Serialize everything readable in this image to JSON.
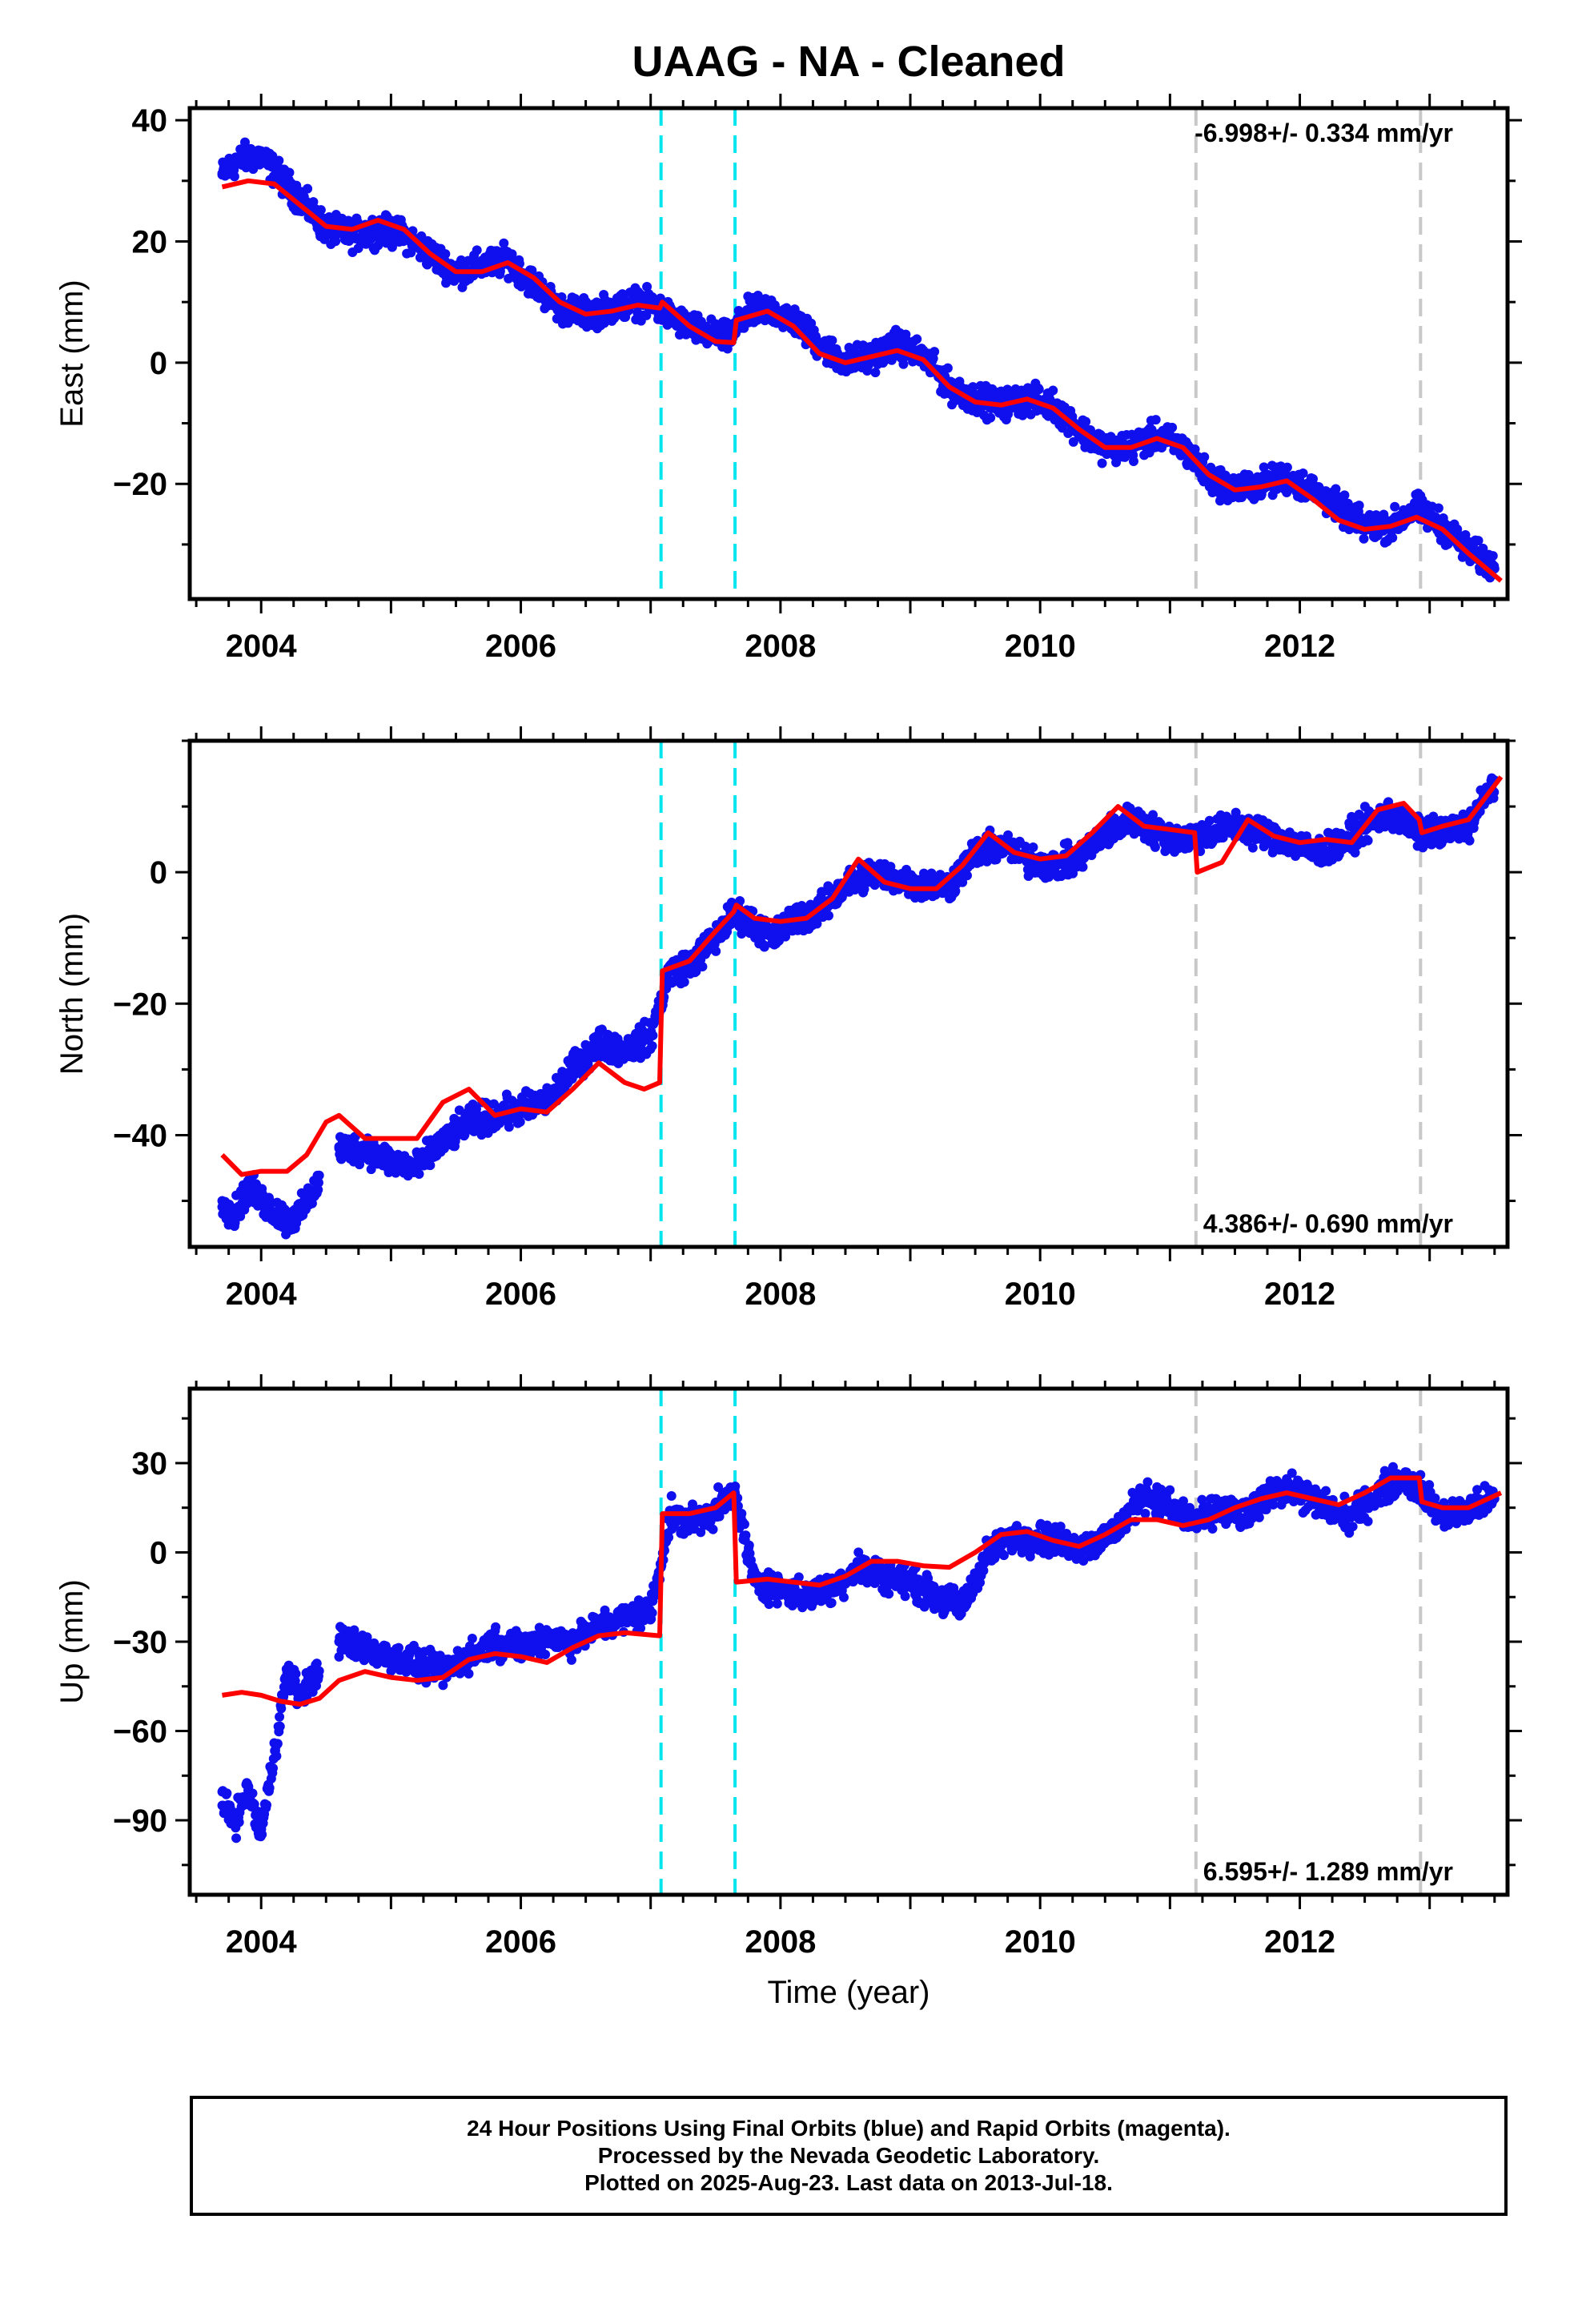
{
  "colors": {
    "data": "#1010ee",
    "model": "#ff0000",
    "event_cyan": "#00e5ee",
    "event_gray": "#c8c8c8",
    "frame": "#000000"
  },
  "footer": {
    "line1": "24 Hour Positions Using Final Orbits (blue) and Rapid Orbits (magenta).",
    "line2": "Processed by the Nevada Geodetic Laboratory.",
    "line3": "Plotted on 2025-Aug-23. Last data on 2013-Jul-18."
  },
  "chart_data": [
    {
      "type": "scatter",
      "title": "UAAG  - NA - Cleaned",
      "xlabel": "",
      "ylabel": "East (mm)",
      "xlim": [
        2003.45,
        2013.6
      ],
      "ylim": [
        -39,
        42
      ],
      "xticks": [
        2004,
        2006,
        2008,
        2010,
        2012
      ],
      "yticks": [
        -20,
        0,
        20,
        40
      ],
      "rate_label": "-6.998+/- 0.334 mm/yr",
      "rate_position": "top-right",
      "grid": false,
      "events_cyan": [
        2007.08,
        2007.65
      ],
      "events_gray": [
        2011.2,
        2012.93
      ],
      "series": [
        {
          "role": "data",
          "x": [
            2003.7,
            2003.8,
            2003.9,
            2004.0,
            2004.3,
            2004.5,
            2004.7,
            2004.9,
            2005.1,
            2005.3,
            2005.5,
            2005.7,
            2005.9,
            2006.1,
            2006.3,
            2006.5,
            2006.7,
            2006.9,
            2007.05,
            2007.2,
            2007.4,
            2007.6,
            2007.75,
            2007.9,
            2008.1,
            2008.3,
            2008.5,
            2008.7,
            2008.9,
            2009.1,
            2009.3,
            2009.5,
            2009.7,
            2009.9,
            2010.1,
            2010.3,
            2010.5,
            2010.7,
            2010.9,
            2011.1,
            2011.3,
            2011.5,
            2011.7,
            2011.9,
            2012.1,
            2012.3,
            2012.5,
            2012.7,
            2012.9,
            2013.1,
            2013.3,
            2013.5
          ],
          "y": [
            31,
            33,
            34,
            34,
            27,
            22,
            21,
            22,
            21,
            18,
            15,
            16,
            17,
            13,
            9,
            8,
            9,
            10,
            9,
            7,
            5,
            4,
            8,
            9,
            7,
            3,
            0,
            1,
            3,
            1,
            -4,
            -6,
            -7,
            -6,
            -7,
            -11,
            -14,
            -14,
            -12,
            -14,
            -19,
            -21,
            -20,
            -19,
            -21,
            -24,
            -27,
            -27,
            -24,
            -27,
            -31,
            -34
          ]
        },
        {
          "role": "model",
          "x": [
            2003.7,
            2003.9,
            2004.1,
            2004.3,
            2004.5,
            2004.7,
            2004.9,
            2005.1,
            2005.3,
            2005.5,
            2005.7,
            2005.9,
            2006.1,
            2006.3,
            2006.5,
            2006.7,
            2006.9,
            2007.07,
            2007.09,
            2007.3,
            2007.5,
            2007.64,
            2007.66,
            2007.9,
            2008.1,
            2008.3,
            2008.5,
            2008.7,
            2008.9,
            2009.1,
            2009.3,
            2009.5,
            2009.7,
            2009.9,
            2010.1,
            2010.3,
            2010.5,
            2010.7,
            2010.9,
            2011.1,
            2011.3,
            2011.5,
            2011.7,
            2011.9,
            2012.1,
            2012.3,
            2012.5,
            2012.7,
            2012.9,
            2013.1,
            2013.3,
            2013.55
          ],
          "y": [
            29,
            30,
            29.5,
            26,
            22.5,
            22,
            23.5,
            22,
            18,
            15,
            15,
            16.5,
            14,
            10,
            8,
            8.5,
            9.5,
            9,
            10,
            6,
            3.5,
            3.3,
            7,
            8.5,
            6,
            1.5,
            0,
            1,
            2,
            0.5,
            -4,
            -6.5,
            -7,
            -6,
            -7.5,
            -11,
            -14,
            -14,
            -12.5,
            -14,
            -18.5,
            -21,
            -20.5,
            -19.5,
            -22.5,
            -26,
            -27.5,
            -27,
            -25.5,
            -27.5,
            -31.5,
            -36
          ]
        }
      ]
    },
    {
      "type": "scatter",
      "title": "",
      "xlabel": "",
      "ylabel": "North (mm)",
      "xlim": [
        2003.45,
        2013.6
      ],
      "ylim": [
        -57,
        20
      ],
      "xticks": [
        2004,
        2006,
        2008,
        2010,
        2012
      ],
      "yticks": [
        -40,
        -20,
        0
      ],
      "rate_label": "4.386+/- 0.690 mm/yr",
      "rate_position": "bottom-right",
      "grid": false,
      "events_cyan": [
        2007.08,
        2007.65
      ],
      "events_gray": [
        2011.2,
        2012.93
      ],
      "series": [
        {
          "role": "data",
          "x": [
            2003.7,
            2003.8,
            2003.9,
            2004.0,
            2004.2,
            2004.3,
            2004.6,
            2004.8,
            2005.0,
            2005.2,
            2005.4,
            2005.6,
            2005.8,
            2006.0,
            2006.2,
            2006.4,
            2006.6,
            2006.8,
            2007.0,
            2007.15,
            2007.3,
            2007.5,
            2007.65,
            2007.8,
            2007.95,
            2008.1,
            2008.3,
            2008.5,
            2008.7,
            2008.9,
            2009.1,
            2009.3,
            2009.5,
            2009.7,
            2009.9,
            2010.1,
            2010.3,
            2010.5,
            2010.7,
            2010.9,
            2011.1,
            2011.3,
            2011.5,
            2011.7,
            2011.9,
            2012.1,
            2012.3,
            2012.5,
            2012.7,
            2012.9,
            2013.1,
            2013.3,
            2013.5
          ],
          "y": [
            -50,
            -52,
            -48,
            -50,
            -53,
            -52,
            -42,
            -42,
            -44,
            -45,
            -41,
            -38,
            -37,
            -36,
            -35,
            -30,
            -26,
            -27,
            -25,
            -15,
            -14,
            -10,
            -6,
            -8,
            -10,
            -7,
            -6,
            -2,
            0,
            -1,
            -2,
            -2,
            3,
            4,
            2,
            1,
            2,
            6,
            8,
            6,
            5,
            6,
            7,
            6,
            5,
            3,
            4,
            7,
            9,
            6,
            6,
            7,
            14
          ]
        },
        {
          "role": "model",
          "x": [
            2003.7,
            2003.85,
            2004.0,
            2004.2,
            2004.35,
            2004.5,
            2004.6,
            2004.8,
            2005.0,
            2005.2,
            2005.4,
            2005.6,
            2005.8,
            2006.0,
            2006.2,
            2006.4,
            2006.6,
            2006.8,
            2006.95,
            2007.07,
            2007.09,
            2007.3,
            2007.5,
            2007.64,
            2007.66,
            2007.8,
            2008.0,
            2008.2,
            2008.4,
            2008.6,
            2008.8,
            2009.0,
            2009.2,
            2009.4,
            2009.6,
            2009.8,
            2010.0,
            2010.2,
            2010.4,
            2010.6,
            2010.8,
            2011.0,
            2011.19,
            2011.21,
            2011.4,
            2011.6,
            2011.8,
            2012.0,
            2012.2,
            2012.4,
            2012.6,
            2012.8,
            2012.92,
            2012.94,
            2013.1,
            2013.3,
            2013.55
          ],
          "y": [
            -43,
            -46,
            -45.5,
            -45.5,
            -43,
            -38,
            -37,
            -40.5,
            -40.5,
            -40.5,
            -35,
            -33,
            -37,
            -36,
            -36.5,
            -33,
            -29,
            -32,
            -33,
            -32,
            -15,
            -13.5,
            -9,
            -6,
            -5,
            -7,
            -7.5,
            -7,
            -4,
            2,
            -1.5,
            -2.5,
            -2.5,
            1,
            6,
            3,
            2,
            2.5,
            6,
            10,
            7,
            6.5,
            6,
            0,
            1.5,
            8,
            5.5,
            4.5,
            5,
            4.5,
            9.5,
            10.5,
            8,
            6,
            7,
            8,
            14.5
          ]
        }
      ]
    },
    {
      "type": "scatter",
      "title": "",
      "xlabel": "Time (year)",
      "ylabel": "Up (mm)",
      "xlim": [
        2003.45,
        2013.6
      ],
      "ylim": [
        -115,
        55
      ],
      "xticks": [
        2004,
        2006,
        2008,
        2010,
        2012
      ],
      "yticks": [
        -90,
        -60,
        -30,
        0,
        30
      ],
      "rate_label": "6.595+/- 1.289 mm/yr",
      "rate_position": "bottom-right",
      "grid": false,
      "events_cyan": [
        2007.08,
        2007.65
      ],
      "events_gray": [
        2011.2,
        2012.93
      ],
      "series": [
        {
          "role": "data",
          "x": [
            2003.7,
            2003.8,
            2003.9,
            2004.0,
            2004.2,
            2004.3,
            2004.6,
            2004.8,
            2005.0,
            2005.2,
            2005.4,
            2005.6,
            2005.8,
            2006.0,
            2006.2,
            2006.4,
            2006.6,
            2006.8,
            2007.0,
            2007.15,
            2007.3,
            2007.5,
            2007.65,
            2007.8,
            2008.0,
            2008.2,
            2008.4,
            2008.6,
            2008.8,
            2009.0,
            2009.2,
            2009.4,
            2009.6,
            2009.8,
            2010.0,
            2010.2,
            2010.4,
            2010.6,
            2010.8,
            2011.0,
            2011.2,
            2011.4,
            2011.6,
            2011.8,
            2012.0,
            2012.2,
            2012.4,
            2012.6,
            2012.8,
            2012.95,
            2013.1,
            2013.3,
            2013.5
          ],
          "y": [
            -85,
            -90,
            -80,
            -95,
            -40,
            -48,
            -30,
            -32,
            -35,
            -38,
            -40,
            -35,
            -30,
            -32,
            -28,
            -30,
            -25,
            -22,
            -20,
            12,
            10,
            14,
            20,
            -10,
            -12,
            -15,
            -12,
            -5,
            -8,
            -10,
            -15,
            -18,
            0,
            5,
            5,
            3,
            2,
            8,
            20,
            15,
            10,
            15,
            12,
            22,
            20,
            15,
            12,
            20,
            25,
            20,
            12,
            14,
            18
          ]
        },
        {
          "role": "model",
          "x": [
            2003.7,
            2003.85,
            2004.0,
            2004.15,
            2004.3,
            2004.45,
            2004.6,
            2004.8,
            2005.0,
            2005.2,
            2005.4,
            2005.6,
            2005.8,
            2006.0,
            2006.2,
            2006.4,
            2006.6,
            2006.8,
            2007.07,
            2007.09,
            2007.3,
            2007.5,
            2007.64,
            2007.66,
            2007.9,
            2008.1,
            2008.3,
            2008.5,
            2008.7,
            2008.9,
            2009.1,
            2009.3,
            2009.5,
            2009.7,
            2009.9,
            2010.1,
            2010.3,
            2010.5,
            2010.7,
            2010.9,
            2011.1,
            2011.3,
            2011.5,
            2011.7,
            2011.9,
            2012.1,
            2012.3,
            2012.5,
            2012.7,
            2012.92,
            2012.94,
            2013.1,
            2013.3,
            2013.55
          ],
          "y": [
            -48,
            -47,
            -48,
            -50,
            -51,
            -49,
            -43,
            -40,
            -42,
            -43,
            -42,
            -36,
            -34,
            -35,
            -37,
            -32,
            -28,
            -27,
            -28,
            13,
            13,
            15,
            20,
            -10,
            -9,
            -10,
            -11,
            -8,
            -3,
            -3,
            -4.5,
            -5,
            0,
            6,
            7,
            4,
            2,
            6,
            11,
            11,
            9,
            11,
            15,
            18,
            20,
            18,
            16,
            20,
            25,
            25,
            17,
            15,
            15,
            20
          ]
        }
      ]
    }
  ]
}
